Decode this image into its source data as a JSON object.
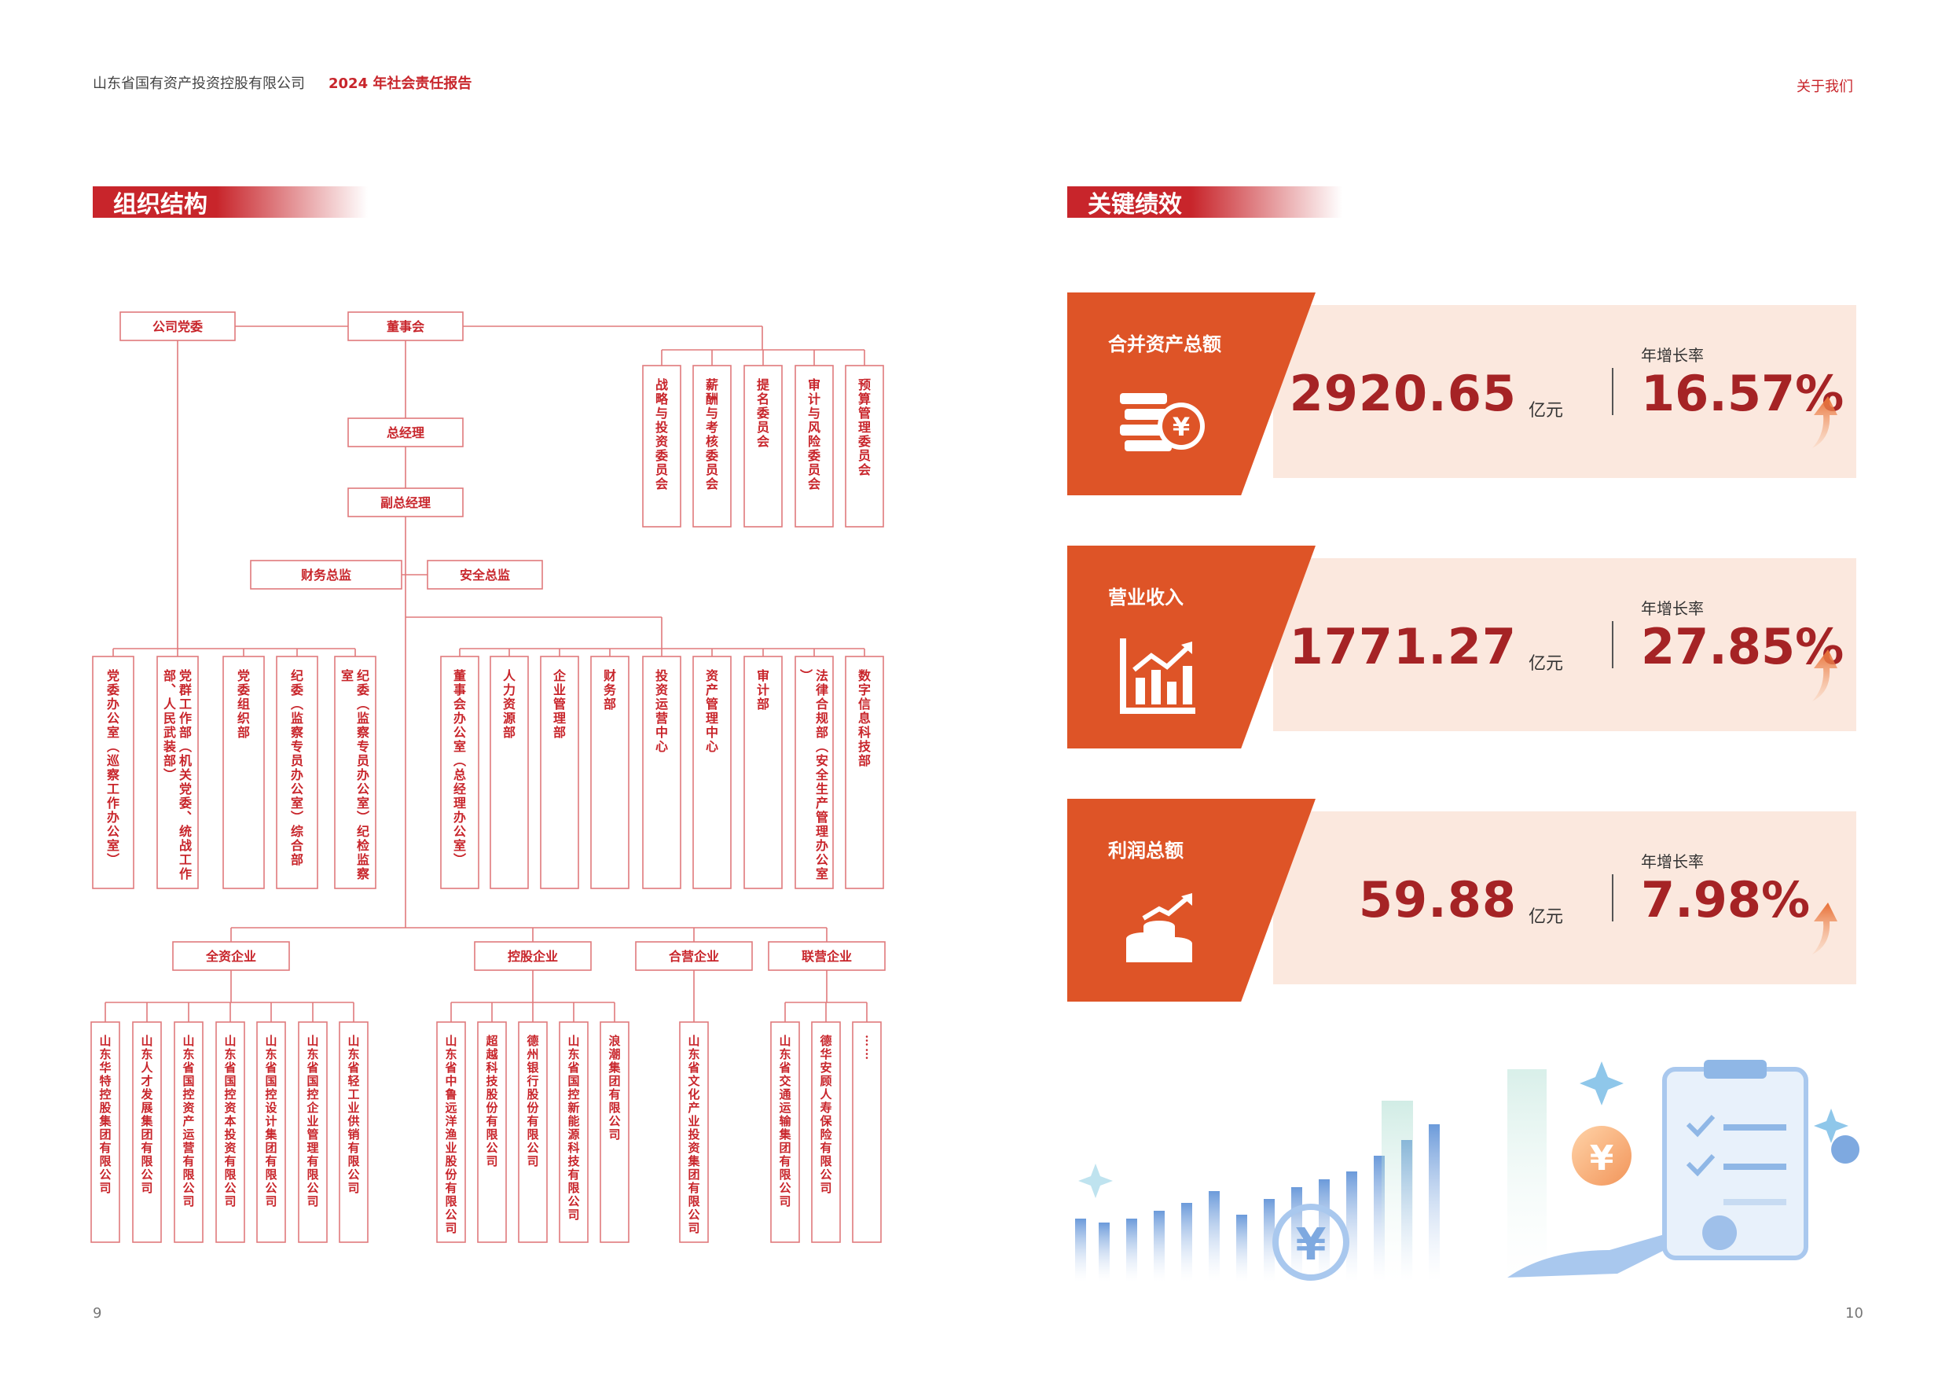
{
  "header": {
    "company": "山东省国有资产投资控股有限公司",
    "report": "2024 年社会责任报告",
    "section_right": "关于我们"
  },
  "page_numbers": {
    "left": "9",
    "right": "10"
  },
  "sections": {
    "org": "组织结构",
    "kpi": "关键绩效"
  },
  "org": {
    "top": {
      "party": "公司党委",
      "board": "董事会"
    },
    "committees": [
      "战略与投资委员会",
      "薪酬与考核委员会",
      "提名委员会",
      "审计与风险委员会",
      "预算管理委员会"
    ],
    "gm": "总经理",
    "dgm": "副总经理",
    "directors": {
      "finance": "财务总监",
      "safety": "安全总监"
    },
    "party_depts": [
      "党委办公室（巡察工作办公室）",
      "党群工作部（机关党委、统战工作部、人民武装部）",
      "党委组织部",
      "纪委（监察专员办公室）综合部",
      "纪委（监察专员办公室）纪检监察室"
    ],
    "admin_depts": [
      "董事会办公室（总经理办公室）",
      "人力资源部",
      "企业管理部",
      "财务部",
      "投资运营中心",
      "资产管理中心",
      "审计部",
      "法律合规部（安全生产管理办公室）",
      "数字信息科技部"
    ],
    "groups": [
      {
        "name": "全资企业",
        "companies": [
          "山东华特控股集团有限公司",
          "山东人才发展集团有限公司",
          "山东省国控资产运营有限公司",
          "山东省国控资本投资有限公司",
          "山东省国控设计集团有限公司",
          "山东省国控企业管理有限公司",
          "山东省轻工业供销有限公司"
        ]
      },
      {
        "name": "控股企业",
        "companies": [
          "山东省中鲁远洋渔业股份有限公司",
          "超越科技股份有限公司",
          "德州银行股份有限公司",
          "山东省国控新能源科技有限公司",
          "浪潮集团有限公司"
        ]
      },
      {
        "name": "合营企业",
        "companies": [
          "山东省文化产业投资集团有限公司"
        ]
      },
      {
        "name": "联营企业",
        "companies": [
          "山东省交通运输集团有限公司",
          "德华安顾人寿保险有限公司",
          "……"
        ]
      }
    ]
  },
  "kpi": {
    "rate_label": "年增长率",
    "items": [
      {
        "label": "合并资产总额",
        "value": "2920.65",
        "unit": "亿元",
        "rate": "16.57%",
        "icon": "coins-yuan-icon"
      },
      {
        "label": "营业收入",
        "value": "1771.27",
        "unit": "亿元",
        "rate": "27.85%",
        "icon": "bar-chart-growth-icon"
      },
      {
        "label": "利润总额",
        "value": "59.88",
        "unit": "亿元",
        "rate": "7.98%",
        "icon": "coin-stack-profit-icon"
      }
    ]
  },
  "colors": {
    "accent": "#c8252b",
    "orange": "#de5427",
    "panel": "#fbe8de",
    "value": "#a52325"
  }
}
